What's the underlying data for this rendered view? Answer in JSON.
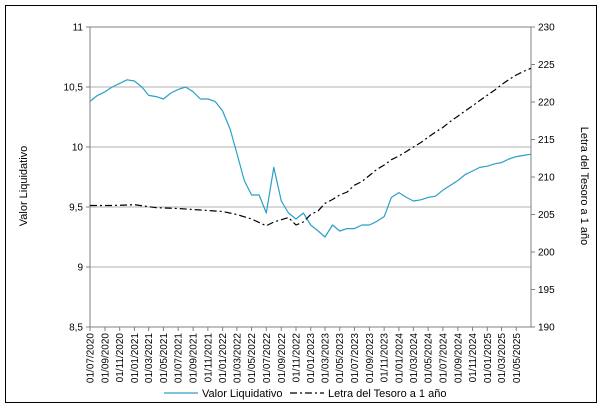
{
  "chart_data": {
    "type": "line",
    "ylabel": "Valor Liquidativo",
    "y2label": "Letra del Tesoro a 1 año",
    "ylim": [
      8.5,
      11
    ],
    "y2lim": [
      190,
      230
    ],
    "yticks": [
      "8,5",
      "9",
      "9,5",
      "10",
      "10,5",
      "11"
    ],
    "y2ticks": [
      "190",
      "195",
      "200",
      "205",
      "210",
      "215",
      "220",
      "225",
      "230"
    ],
    "xticks": [
      "01/07/2020",
      "01/09/2020",
      "01/11/2020",
      "01/01/2021",
      "01/03/2021",
      "01/05/2021",
      "01/07/2021",
      "01/09/2021",
      "01/11/2021",
      "01/01/2022",
      "01/03/2022",
      "01/05/2022",
      "01/07/2022",
      "01/09/2022",
      "01/11/2022",
      "01/01/2023",
      "01/03/2023",
      "01/05/2023",
      "01/07/2023",
      "01/09/2023",
      "01/11/2023",
      "01/01/2024",
      "01/03/2024",
      "01/05/2024",
      "01/07/2024",
      "01/09/2024",
      "01/11/2024",
      "01/01/2025",
      "01/03/2025",
      "01/05/2025"
    ],
    "grid": true,
    "legend_position": "bottom",
    "series": [
      {
        "name": "Valor Liquidativo",
        "axis": "left",
        "color": "#2aa0c8",
        "style": "solid",
        "x": [
          "2020-07-01",
          "2020-08-01",
          "2020-09-01",
          "2020-10-01",
          "2020-11-01",
          "2020-12-01",
          "2021-01-01",
          "2021-02-01",
          "2021-03-01",
          "2021-04-01",
          "2021-05-01",
          "2021-06-01",
          "2021-07-01",
          "2021-08-01",
          "2021-09-01",
          "2021-10-01",
          "2021-11-01",
          "2021-12-01",
          "2022-01-01",
          "2022-02-01",
          "2022-03-01",
          "2022-04-01",
          "2022-05-01",
          "2022-06-01",
          "2022-07-01",
          "2022-08-01",
          "2022-09-01",
          "2022-10-01",
          "2022-11-01",
          "2022-12-01",
          "2023-01-01",
          "2023-02-01",
          "2023-03-01",
          "2023-04-01",
          "2023-05-01",
          "2023-06-01",
          "2023-07-01",
          "2023-08-01",
          "2023-09-01",
          "2023-10-01",
          "2023-11-01",
          "2023-12-01",
          "2024-01-01",
          "2024-02-01",
          "2024-03-01",
          "2024-04-01",
          "2024-05-01",
          "2024-06-01",
          "2024-07-01",
          "2024-08-01",
          "2024-09-01",
          "2024-10-01",
          "2024-11-01",
          "2024-12-01",
          "2025-01-01",
          "2025-02-01",
          "2025-03-01",
          "2025-04-01",
          "2025-05-01",
          "2025-06-01",
          "2025-07-01"
        ],
        "values": [
          10.38,
          10.43,
          10.46,
          10.5,
          10.53,
          10.56,
          10.55,
          10.5,
          10.43,
          10.42,
          10.4,
          10.45,
          10.48,
          10.5,
          10.46,
          10.4,
          10.4,
          10.38,
          10.3,
          10.15,
          9.95,
          9.72,
          9.6,
          9.6,
          9.45,
          9.83,
          9.55,
          9.45,
          9.4,
          9.45,
          9.35,
          9.3,
          9.25,
          9.35,
          9.3,
          9.32,
          9.32,
          9.35,
          9.35,
          9.38,
          9.42,
          9.58,
          9.62,
          9.58,
          9.55,
          9.56,
          9.58,
          9.59,
          9.64,
          9.68,
          9.72,
          9.77,
          9.8,
          9.83,
          9.84,
          9.86,
          9.87,
          9.9,
          9.92,
          9.93,
          9.94
        ]
      },
      {
        "name": "Letra del Tesoro a 1 año",
        "axis": "right",
        "color": "#000000",
        "style": "dash-dot",
        "x": [
          "2020-07-01",
          "2020-10-01",
          "2021-01-01",
          "2021-04-01",
          "2021-07-01",
          "2021-10-01",
          "2022-01-01",
          "2022-03-01",
          "2022-05-01",
          "2022-07-01",
          "2022-08-01",
          "2022-09-01",
          "2022-10-01",
          "2022-11-01",
          "2022-12-01",
          "2023-01-01",
          "2023-02-01",
          "2023-03-01",
          "2023-04-01",
          "2023-05-01",
          "2023-06-01",
          "2023-07-01",
          "2023-08-01",
          "2023-09-01",
          "2023-10-01",
          "2023-11-01",
          "2023-12-01",
          "2024-01-01",
          "2024-02-01",
          "2024-03-01",
          "2024-04-01",
          "2024-05-01",
          "2024-06-01",
          "2024-07-01",
          "2024-08-01",
          "2024-09-01",
          "2024-10-01",
          "2024-11-01",
          "2024-12-01",
          "2025-01-01",
          "2025-02-01",
          "2025-03-01",
          "2025-04-01",
          "2025-05-01",
          "2025-06-01",
          "2025-07-01"
        ],
        "values": [
          206.2,
          206.2,
          206.3,
          205.9,
          205.8,
          205.6,
          205.4,
          205.0,
          204.4,
          203.5,
          204.0,
          204.3,
          204.6,
          203.6,
          204.0,
          205.0,
          205.5,
          206.5,
          207.0,
          207.6,
          208.0,
          208.9,
          209.4,
          210.2,
          211.0,
          211.6,
          212.3,
          212.8,
          213.4,
          214.0,
          214.6,
          215.3,
          216.0,
          216.6,
          217.4,
          218.1,
          218.8,
          219.5,
          220.2,
          220.9,
          221.6,
          222.3,
          223.0,
          223.6,
          224.1,
          224.5
        ]
      }
    ]
  }
}
